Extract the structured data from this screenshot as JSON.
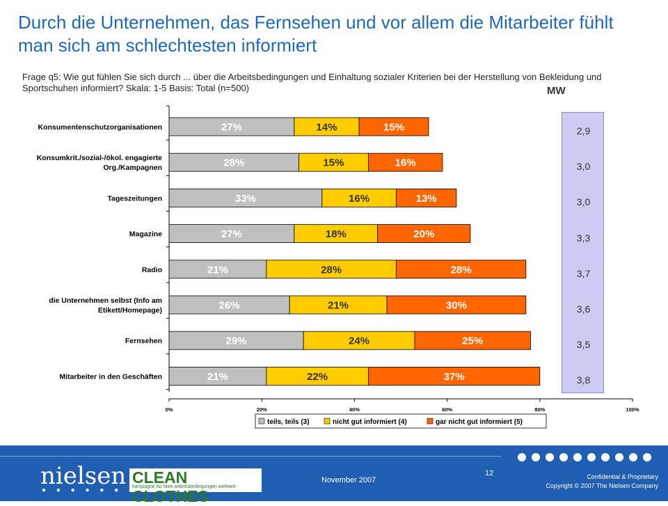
{
  "slide": {
    "title": "Durch die Unternehmen, das Fernsehen und vor allem die Mitarbeiter fühlt man sich am schlechtesten informiert",
    "subtitle": "Frage q5: Wie gut fühlen Sie sich durch ... über die Arbeitsbedingungen und Einhaltung sozialer Kriterien bei der Herstellung von Bekleidung und Sportschuhen informiert? Skala: 1-5 Basis: Total (n=500)",
    "mw_label": "MW",
    "mw_values": [
      "2,9",
      "3,0",
      "3,0",
      "3,3",
      "3,7",
      "3,6",
      "3,5",
      "3,8"
    ]
  },
  "chart_data": {
    "type": "bar",
    "orientation": "horizontal",
    "stacked": true,
    "categories": [
      [
        "Konsumentenschutzorganisationen"
      ],
      [
        "Konsumkrit./sozial-/ökol. engagierte",
        "Org./Kampagnen"
      ],
      [
        "Tageszeitungen"
      ],
      [
        "Magazine"
      ],
      [
        "Radio"
      ],
      [
        "die Unternehmen selbst (Info am",
        "Etikett/Homepage)"
      ],
      [
        "Fernsehen"
      ],
      [
        "Mitarbeiter in den Geschäften"
      ]
    ],
    "series": [
      {
        "name": "teils, teils (3)",
        "color": "#c0c0c0",
        "label_color": "#ffffff",
        "values": [
          27,
          28,
          33,
          27,
          21,
          26,
          29,
          21
        ]
      },
      {
        "name": "nicht gut informiert (4)",
        "color": "#ffcc00",
        "label_color": "#333333",
        "values": [
          14,
          15,
          16,
          18,
          28,
          21,
          24,
          22
        ]
      },
      {
        "name": "gar nicht gut informiert (5)",
        "color": "#ff6600",
        "label_color": "#ffffff",
        "values": [
          15,
          16,
          13,
          20,
          28,
          30,
          25,
          37
        ]
      }
    ],
    "xlim": [
      0,
      100
    ],
    "xticks": [
      "0%",
      "20%",
      "40%",
      "60%",
      "80%",
      "100%"
    ],
    "legend_position": "bottom"
  },
  "footer": {
    "logo_text": "nielsen",
    "logo_dots": "● ● ● ● ● ● ● ● ●",
    "partner_logo": "CLEAN CLOTHES",
    "partner_tagline": "kampagne für faire arbeitsbedingungen weltweit",
    "date": "November 2007",
    "page_number": "12",
    "confidential": "Confidential & Proprietary",
    "copyright": "Copyright © 2007 The Nielsen Company"
  }
}
